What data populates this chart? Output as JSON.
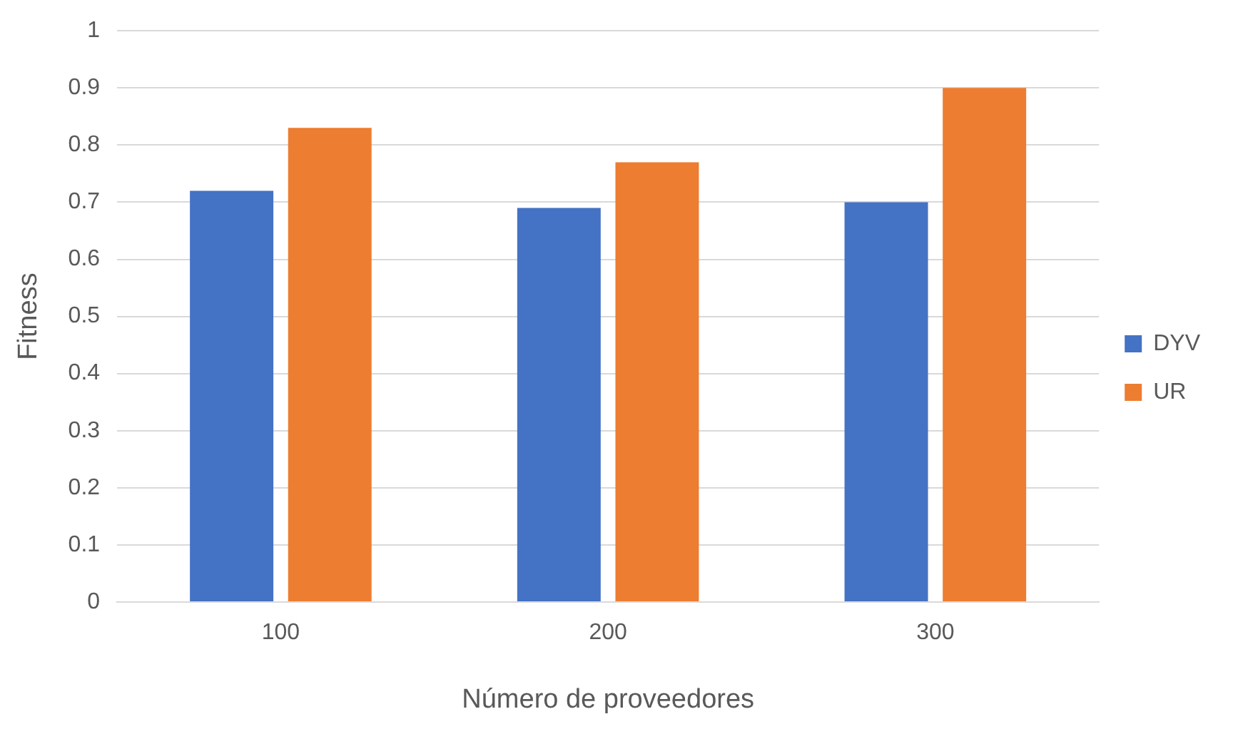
{
  "chart_data": {
    "type": "bar",
    "xlabel": "Número de proveedores",
    "ylabel": "Fitness",
    "categories": [
      "100",
      "200",
      "300"
    ],
    "series": [
      {
        "name": "DYV",
        "color": "#4472c4",
        "values": [
          0.72,
          0.69,
          0.7
        ]
      },
      {
        "name": "UR",
        "color": "#ed7d31",
        "values": [
          0.83,
          0.77,
          0.9
        ]
      }
    ],
    "ylim": [
      0,
      1
    ],
    "yticks": [
      0,
      0.1,
      0.2,
      0.3,
      0.4,
      0.5,
      0.6,
      0.7,
      0.8,
      0.9,
      1
    ],
    "grid": "y",
    "legend": "right"
  }
}
